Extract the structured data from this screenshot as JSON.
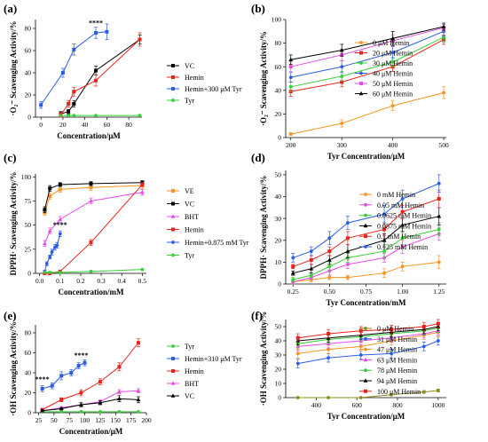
{
  "chart_data": [
    {
      "panel": "(a)",
      "type": "line",
      "xlabel": "Concentration/μM",
      "ylabel": "·O₂⁻ Scavenging Activity/%",
      "xlim": [
        -5,
        92
      ],
      "ylim": [
        0,
        88
      ],
      "xticks": [
        0,
        20,
        40,
        60,
        80
      ],
      "yticks": [
        0,
        20,
        40,
        60,
        80
      ],
      "legend_position": "right",
      "series": [
        {
          "name": "VC",
          "color": "#000000",
          "marker": "square",
          "x": [
            18,
            25,
            30,
            50,
            90
          ],
          "y": [
            3,
            5,
            12,
            42,
            70
          ],
          "err": [
            2,
            2,
            3,
            4,
            4
          ]
        },
        {
          "name": "Hemin",
          "color": "#e8231c",
          "marker": "square",
          "x": [
            18,
            25,
            30,
            50,
            90
          ],
          "y": [
            2,
            12,
            23,
            33,
            70
          ],
          "err": [
            2,
            3,
            4,
            5,
            6
          ]
        },
        {
          "name": "Hemin+300 μM Tyr",
          "color": "#2b5ce6",
          "marker": "square",
          "x": [
            0,
            20,
            30,
            50,
            60
          ],
          "y": [
            11,
            40,
            61,
            76,
            77
          ],
          "err": [
            3,
            4,
            5,
            5,
            7
          ]
        },
        {
          "name": "Tyr",
          "color": "#34d034",
          "marker": "dot",
          "x": [
            18,
            25,
            30,
            50,
            90
          ],
          "y": [
            1.5,
            1.5,
            1.5,
            1.5,
            1.5
          ],
          "err": [
            0,
            0,
            0,
            0,
            0
          ]
        }
      ],
      "annotations": [
        {
          "text": "****",
          "x": 50,
          "y": 83
        }
      ]
    },
    {
      "panel": "(b)",
      "type": "line",
      "xlabel": "Tyr Concentration/μM",
      "ylabel": "·O₂⁻ Scavenging Activity/%",
      "xlim": [
        190,
        505
      ],
      "ylim": [
        0,
        100
      ],
      "xticks": [
        200,
        300,
        400,
        500
      ],
      "yticks": [
        0,
        20,
        40,
        60,
        80,
        100
      ],
      "legend_position": "right",
      "series": [
        {
          "name": "0 μM Hemin",
          "color": "#f7931e",
          "marker": "dot",
          "x": [
            200,
            300,
            400,
            500
          ],
          "y": [
            3,
            12,
            27,
            38
          ],
          "err": [
            1,
            3,
            4,
            5
          ]
        },
        {
          "name": "20 μM Hemin",
          "color": "#e8231c",
          "marker": "square",
          "x": [
            200,
            300,
            400,
            500
          ],
          "y": [
            39,
            47,
            60,
            83
          ],
          "err": [
            4,
            4,
            4,
            4
          ]
        },
        {
          "name": "30 μM Hemin",
          "color": "#34d034",
          "marker": "dot",
          "x": [
            200,
            300,
            400,
            500
          ],
          "y": [
            43,
            52,
            64,
            85
          ],
          "err": [
            4,
            4,
            4,
            4
          ]
        },
        {
          "name": "40 μM Hemin",
          "color": "#2b5ce6",
          "marker": "dot",
          "x": [
            200,
            300,
            400,
            500
          ],
          "y": [
            51,
            60,
            72,
            90
          ],
          "err": [
            4,
            5,
            5,
            4
          ]
        },
        {
          "name": "50 μM Hemin",
          "color": "#e64ce6",
          "marker": "square",
          "x": [
            200,
            300,
            400,
            500
          ],
          "y": [
            60,
            70,
            82,
            93
          ],
          "err": [
            4,
            5,
            5,
            3
          ]
        },
        {
          "name": "60 μM Hemin",
          "color": "#000000",
          "marker": "triangle",
          "x": [
            200,
            300,
            400,
            500
          ],
          "y": [
            66,
            74,
            84,
            94
          ],
          "err": [
            4,
            5,
            6,
            3
          ]
        }
      ],
      "annotations": []
    },
    {
      "panel": "(c)",
      "type": "line",
      "xlabel": "Concentration/mM",
      "ylabel": "DPPH· Scavenging Activity/%",
      "xlim": [
        -0.02,
        0.52
      ],
      "ylim": [
        0,
        103
      ],
      "xticks": [
        0.0,
        0.1,
        0.2,
        0.3,
        0.4,
        0.5
      ],
      "xticklabels": [
        "0.0",
        "0.1",
        "0.2",
        "0.3",
        "0.4",
        "0.5"
      ],
      "yticks": [
        0,
        25,
        50,
        75,
        100
      ],
      "legend_position": "right",
      "series": [
        {
          "name": "VE",
          "color": "#f7931e",
          "marker": "square",
          "x": [
            0.025,
            0.05,
            0.1,
            0.25,
            0.5
          ],
          "y": [
            63,
            80,
            87,
            89,
            91
          ],
          "err": [
            3,
            3,
            3,
            3,
            3
          ]
        },
        {
          "name": "VC",
          "color": "#000000",
          "marker": "square",
          "x": [
            0.025,
            0.05,
            0.1,
            0.25,
            0.5
          ],
          "y": [
            66,
            88,
            92,
            93,
            94
          ],
          "err": [
            3,
            3,
            2,
            2,
            2
          ]
        },
        {
          "name": "BHT",
          "color": "#e64ce6",
          "marker": "triangle",
          "x": [
            0.025,
            0.05,
            0.1,
            0.25,
            0.5
          ],
          "y": [
            31,
            44,
            56,
            75,
            84
          ],
          "err": [
            3,
            3,
            3,
            3,
            3
          ]
        },
        {
          "name": "Hemin",
          "color": "#e8231c",
          "marker": "square",
          "x": [
            0.025,
            0.05,
            0.1,
            0.25,
            0.5
          ],
          "y": [
            0,
            0,
            2,
            32,
            92
          ],
          "err": [
            0,
            0,
            1,
            3,
            2
          ]
        },
        {
          "name": "Hemin+0.875 mM Tyr",
          "color": "#2b5ce6",
          "marker": "dot",
          "x": [
            0.025,
            0.035,
            0.05,
            0.06,
            0.075,
            0.085,
            0.1
          ],
          "y": [
            2,
            10,
            17,
            22,
            27,
            29,
            41
          ],
          "err": [
            1,
            2,
            2,
            3,
            3,
            3,
            3
          ]
        },
        {
          "name": "Tyr",
          "color": "#34d034",
          "marker": "dot",
          "x": [
            0.025,
            0.05,
            0.1,
            0.25,
            0.5
          ],
          "y": [
            1,
            1,
            1,
            2,
            4
          ],
          "err": [
            0,
            0,
            0,
            0,
            0
          ]
        }
      ],
      "annotations": [
        {
          "text": "****",
          "x": 0.1,
          "y": 48
        }
      ]
    },
    {
      "panel": "(d)",
      "type": "line",
      "xlabel": "Tyr Concentration/mM",
      "ylabel": "DPPH· Scavenging Activity/%",
      "xlim": [
        0.2,
        1.3
      ],
      "ylim": [
        0,
        52
      ],
      "xticks": [
        0.25,
        0.5,
        0.75,
        1.0,
        1.25
      ],
      "xticklabels": [
        "0.25",
        "0.50",
        "0.75",
        "1.00",
        "1.25"
      ],
      "yticks": [
        0,
        10,
        20,
        30,
        40,
        50
      ],
      "legend_position": "right",
      "series": [
        {
          "name": "0 mM Hemin",
          "color": "#f7931e",
          "marker": "dot",
          "x": [
            0.25,
            0.375,
            0.5,
            0.625,
            0.875,
            1.0,
            1.25
          ],
          "y": [
            1,
            2,
            3,
            3,
            5,
            8,
            10
          ],
          "err": [
            0.5,
            1,
            1,
            1,
            2,
            2,
            3
          ]
        },
        {
          "name": "0.05 mM Hemin",
          "color": "#e64ce6",
          "marker": "dot",
          "x": [
            0.25,
            0.375,
            0.5,
            0.625,
            0.875,
            1.0,
            1.25
          ],
          "y": [
            1,
            3,
            6,
            9,
            12,
            17,
            23
          ],
          "err": [
            1,
            1,
            2,
            2,
            2,
            3,
            3
          ]
        },
        {
          "name": "0.0625 mM Hemin",
          "color": "#34d034",
          "marker": "dot",
          "x": [
            0.25,
            0.375,
            0.5,
            0.625,
            0.875,
            1.0,
            1.25
          ],
          "y": [
            2,
            4,
            8,
            12,
            15,
            21,
            25
          ],
          "err": [
            1,
            1,
            2,
            2,
            3,
            3,
            3
          ]
        },
        {
          "name": "0.0875 mM Hemin",
          "color": "#000000",
          "marker": "triangle",
          "x": [
            0.25,
            0.375,
            0.5,
            0.625,
            0.875,
            1.0,
            1.25
          ],
          "y": [
            5,
            7,
            11,
            15,
            20,
            27,
            31
          ],
          "err": [
            1,
            2,
            2,
            3,
            3,
            3,
            4
          ]
        },
        {
          "name": "0.1 mM Hemin",
          "color": "#e8231c",
          "marker": "square",
          "x": [
            0.25,
            0.375,
            0.5,
            0.625,
            0.875,
            1.0,
            1.25
          ],
          "y": [
            8,
            11,
            15,
            21,
            25,
            33,
            39
          ],
          "err": [
            1,
            2,
            2,
            3,
            3,
            3,
            4
          ]
        },
        {
          "name": "0.125 mM Hemin",
          "color": "#2b5ce6",
          "marker": "dot",
          "x": [
            0.25,
            0.375,
            0.5,
            0.625,
            0.875,
            1.0,
            1.25
          ],
          "y": [
            12,
            15,
            21,
            28,
            32,
            39,
            46
          ],
          "err": [
            2,
            2,
            3,
            3,
            4,
            4,
            4
          ]
        }
      ],
      "annotations": []
    },
    {
      "panel": "(e)",
      "type": "line",
      "xlabel": "Concentration/μM",
      "ylabel": "·OH Scavenging Activity/%",
      "xlim": [
        20,
        200
      ],
      "ylim": [
        0,
        88
      ],
      "xticks": [
        25,
        50,
        75,
        100,
        125,
        150,
        175,
        200
      ],
      "yticks": [
        0,
        20,
        40,
        60,
        80
      ],
      "legend_position": "right",
      "series": [
        {
          "name": "Tyr",
          "color": "#34d034",
          "marker": "dot",
          "x": [
            31,
            62,
            94,
            125,
            156,
            187
          ],
          "y": [
            1,
            1,
            1,
            1,
            1,
            1
          ],
          "err": [
            0,
            0,
            0,
            0,
            0,
            0
          ]
        },
        {
          "name": "Hemin+310 μM Tyr",
          "color": "#2b5ce6",
          "marker": "square",
          "x": [
            31,
            47,
            62,
            78,
            90,
            100
          ],
          "y": [
            24,
            27,
            37,
            40,
            47,
            50
          ],
          "err": [
            3,
            3,
            4,
            3,
            3,
            3
          ]
        },
        {
          "name": "Hemin",
          "color": "#e8231c",
          "marker": "square",
          "x": [
            31,
            62,
            94,
            125,
            156,
            187
          ],
          "y": [
            3,
            13,
            20,
            31,
            46,
            70
          ],
          "err": [
            1,
            2,
            3,
            3,
            4,
            4
          ]
        },
        {
          "name": "BHT",
          "color": "#e64ce6",
          "marker": "triangle",
          "x": [
            31,
            62,
            94,
            125,
            156,
            187
          ],
          "y": [
            2,
            5,
            8,
            11,
            21,
            22
          ],
          "err": [
            1,
            1,
            2,
            2,
            2,
            2
          ]
        },
        {
          "name": "VC",
          "color": "#000000",
          "marker": "triangle",
          "x": [
            31,
            62,
            94,
            125,
            156,
            187
          ],
          "y": [
            2,
            4,
            8,
            10,
            14,
            13
          ],
          "err": [
            1,
            1,
            2,
            2,
            3,
            3
          ]
        }
      ],
      "annotations": [
        {
          "text": "****",
          "x": 31,
          "y": 31
        },
        {
          "text": "****",
          "x": 94,
          "y": 55
        }
      ]
    },
    {
      "panel": "(f)",
      "type": "line",
      "xlabel": "Tyr Concentration/μM",
      "ylabel": "·OH Scavenging Activity/%",
      "xlim": [
        250,
        1040
      ],
      "ylim": [
        0,
        55
      ],
      "xticks": [
        400,
        600,
        800,
        1000
      ],
      "yticks": [
        0,
        10,
        20,
        30,
        40,
        50
      ],
      "legend_position": "right",
      "series": [
        {
          "name": "0 μM Hemin",
          "color": "#8c8c1e",
          "marker": "dot",
          "x": [
            310,
            460,
            620,
            770,
            930,
            1000
          ],
          "y": [
            0,
            0,
            0,
            2,
            4,
            5
          ],
          "err": [
            0,
            0,
            0,
            0.5,
            1,
            1
          ]
        },
        {
          "name": "31 μM Hemin",
          "color": "#2b5ce6",
          "marker": "dot",
          "x": [
            310,
            460,
            620,
            770,
            930,
            1000
          ],
          "y": [
            24,
            28,
            30,
            31,
            36,
            40
          ],
          "err": [
            3,
            3,
            3,
            3,
            3,
            3
          ]
        },
        {
          "name": "47 μM Hemin",
          "color": "#f7931e",
          "marker": "dot",
          "x": [
            310,
            460,
            620,
            770,
            930,
            1000
          ],
          "y": [
            31,
            34,
            36,
            40,
            44,
            46
          ],
          "err": [
            3,
            3,
            3,
            3,
            3,
            3
          ]
        },
        {
          "name": "63 μM Hemin",
          "color": "#e64ce6",
          "marker": "triangle",
          "x": [
            310,
            460,
            620,
            770,
            930,
            1000
          ],
          "y": [
            36,
            38,
            40,
            42,
            45,
            47
          ],
          "err": [
            3,
            3,
            3,
            3,
            3,
            3
          ]
        },
        {
          "name": "78 μM Hemin",
          "color": "#34d034",
          "marker": "dot",
          "x": [
            310,
            460,
            620,
            770,
            930,
            1000
          ],
          "y": [
            38,
            41,
            43,
            45,
            47,
            49
          ],
          "err": [
            3,
            3,
            3,
            3,
            3,
            3
          ]
        },
        {
          "name": "94 μM Hemin",
          "color": "#000000",
          "marker": "triangle",
          "x": [
            310,
            460,
            620,
            770,
            930,
            1000
          ],
          "y": [
            40,
            42,
            44,
            46,
            48,
            50
          ],
          "err": [
            3,
            3,
            3,
            3,
            3,
            3
          ]
        },
        {
          "name": "100 μM Hemin",
          "color": "#e8231c",
          "marker": "square",
          "x": [
            310,
            460,
            620,
            770,
            930,
            1000
          ],
          "y": [
            42,
            45,
            47,
            48,
            50,
            52
          ],
          "err": [
            3,
            3,
            3,
            3,
            3,
            3
          ]
        }
      ],
      "annotations": []
    }
  ]
}
